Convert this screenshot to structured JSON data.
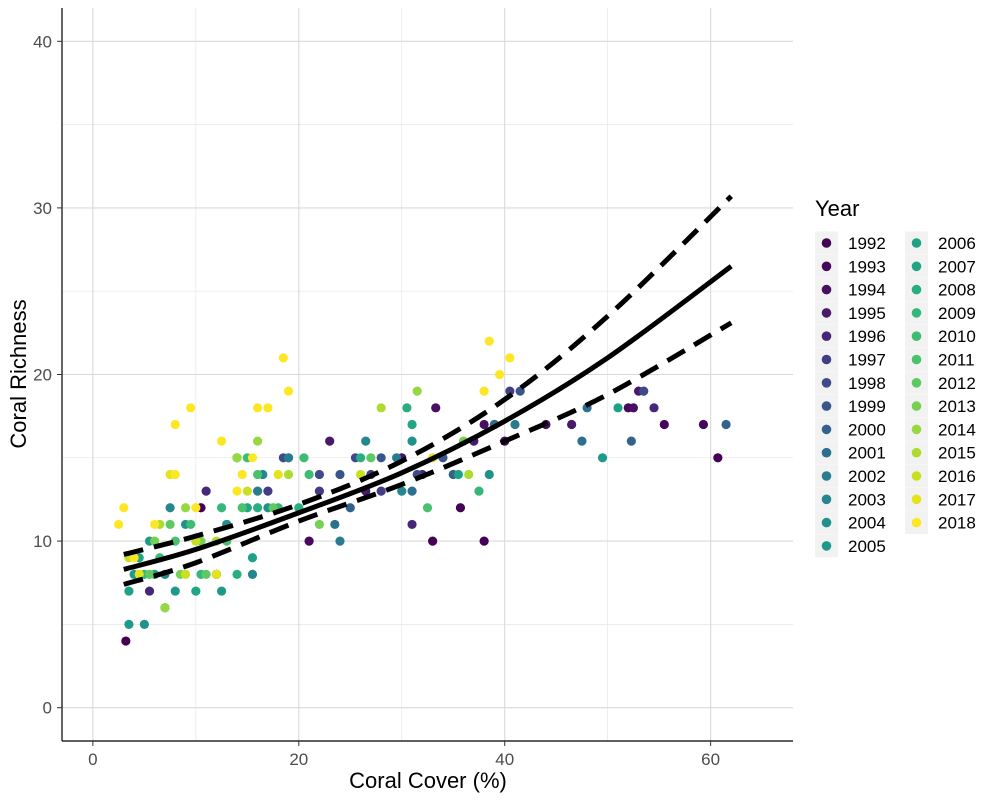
{
  "chart_data": {
    "type": "scatter",
    "xlabel": "Coral Cover (%)",
    "ylabel": "Coral Richness",
    "xlim": [
      -3,
      68
    ],
    "ylim": [
      -2,
      42
    ],
    "x_ticks": [
      0,
      20,
      40,
      60
    ],
    "y_ticks": [
      0,
      10,
      20,
      30,
      40
    ],
    "grid": true,
    "legend": {
      "title": "Year",
      "placement": "right",
      "columns": 2,
      "entries": [
        {
          "label": "1992",
          "color": "#440154"
        },
        {
          "label": "1993",
          "color": "#46085c"
        },
        {
          "label": "1994",
          "color": "#471063"
        },
        {
          "label": "1995",
          "color": "#481a6c"
        },
        {
          "label": "1996",
          "color": "#472878"
        },
        {
          "label": "1997",
          "color": "#433d84"
        },
        {
          "label": "1998",
          "color": "#3e4a89"
        },
        {
          "label": "1999",
          "color": "#39568c"
        },
        {
          "label": "2000",
          "color": "#33638d"
        },
        {
          "label": "2001",
          "color": "#2d6f8e"
        },
        {
          "label": "2002",
          "color": "#287c8e"
        },
        {
          "label": "2003",
          "color": "#24868e"
        },
        {
          "label": "2004",
          "color": "#21918c"
        },
        {
          "label": "2005",
          "color": "#1f9a8a"
        },
        {
          "label": "2006",
          "color": "#1fa187"
        },
        {
          "label": "2007",
          "color": "#21a585"
        },
        {
          "label": "2008",
          "color": "#28ae80"
        },
        {
          "label": "2009",
          "color": "#35b779"
        },
        {
          "label": "2010",
          "color": "#3fbc73"
        },
        {
          "label": "2011",
          "color": "#4ac16d"
        },
        {
          "label": "2012",
          "color": "#5ec962"
        },
        {
          "label": "2013",
          "color": "#75d054"
        },
        {
          "label": "2014",
          "color": "#95d840"
        },
        {
          "label": "2015",
          "color": "#addc30"
        },
        {
          "label": "2016",
          "color": "#c8e020"
        },
        {
          "label": "2017",
          "color": "#e5e419"
        },
        {
          "label": "2018",
          "color": "#fde725"
        }
      ]
    },
    "fit": {
      "x": [
        3,
        10,
        20,
        30,
        40,
        50,
        62
      ],
      "y": [
        8.3,
        9.5,
        11.7,
        14.1,
        17.2,
        21.0,
        26.5
      ]
    },
    "ci_upper": {
      "x": [
        3,
        10,
        20,
        30,
        40,
        50,
        62
      ],
      "y": [
        9.2,
        10.3,
        12.2,
        14.8,
        18.5,
        23.5,
        30.7
      ]
    },
    "ci_lower": {
      "x": [
        3,
        10,
        20,
        30,
        40,
        50,
        62
      ],
      "y": [
        7.4,
        8.7,
        11.2,
        13.4,
        16.0,
        18.8,
        23.1
      ]
    },
    "points": [
      {
        "x": 3.2,
        "y": 4,
        "year": "1992"
      },
      {
        "x": 33,
        "y": 10,
        "year": "1992"
      },
      {
        "x": 38,
        "y": 10,
        "year": "1992"
      },
      {
        "x": 60.7,
        "y": 15,
        "year": "1992"
      },
      {
        "x": 35.7,
        "y": 12,
        "year": "1992"
      },
      {
        "x": 10.5,
        "y": 12,
        "year": "1992"
      },
      {
        "x": 12,
        "y": 8,
        "year": "1992"
      },
      {
        "x": 21,
        "y": 10,
        "year": "1993"
      },
      {
        "x": 40,
        "y": 16,
        "year": "1993"
      },
      {
        "x": 59.3,
        "y": 17,
        "year": "1993"
      },
      {
        "x": 55.5,
        "y": 17,
        "year": "1993"
      },
      {
        "x": 52,
        "y": 18,
        "year": "1993"
      },
      {
        "x": 38,
        "y": 17,
        "year": "1994"
      },
      {
        "x": 44,
        "y": 17,
        "year": "1994"
      },
      {
        "x": 52.5,
        "y": 18,
        "year": "1994"
      },
      {
        "x": 33.3,
        "y": 18,
        "year": "1994"
      },
      {
        "x": 30,
        "y": 15,
        "year": "1994"
      },
      {
        "x": 46.5,
        "y": 17,
        "year": "1995"
      },
      {
        "x": 26.5,
        "y": 13,
        "year": "1995"
      },
      {
        "x": 37,
        "y": 16,
        "year": "1995"
      },
      {
        "x": 53,
        "y": 19,
        "year": "1995"
      },
      {
        "x": 23,
        "y": 16,
        "year": "1995"
      },
      {
        "x": 31,
        "y": 11,
        "year": "1996"
      },
      {
        "x": 54.5,
        "y": 18,
        "year": "1996"
      },
      {
        "x": 39,
        "y": 17,
        "year": "1996"
      },
      {
        "x": 32,
        "y": 14,
        "year": "1996"
      },
      {
        "x": 11,
        "y": 13,
        "year": "1996"
      },
      {
        "x": 5.5,
        "y": 7,
        "year": "1996"
      },
      {
        "x": 22,
        "y": 13,
        "year": "1997"
      },
      {
        "x": 17,
        "y": 13,
        "year": "1997"
      },
      {
        "x": 27,
        "y": 14,
        "year": "1997"
      },
      {
        "x": 28,
        "y": 13,
        "year": "1997"
      },
      {
        "x": 40.5,
        "y": 19,
        "year": "1997"
      },
      {
        "x": 25.5,
        "y": 15,
        "year": "1998"
      },
      {
        "x": 31.5,
        "y": 14,
        "year": "1998"
      },
      {
        "x": 18.5,
        "y": 15,
        "year": "1998"
      },
      {
        "x": 22,
        "y": 14,
        "year": "1998"
      },
      {
        "x": 53.5,
        "y": 19,
        "year": "1998"
      },
      {
        "x": 19,
        "y": 15,
        "year": "1999"
      },
      {
        "x": 24,
        "y": 14,
        "year": "1999"
      },
      {
        "x": 41.5,
        "y": 19,
        "year": "1999"
      },
      {
        "x": 28,
        "y": 15,
        "year": "1999"
      },
      {
        "x": 34,
        "y": 15,
        "year": "1999"
      },
      {
        "x": 25,
        "y": 12,
        "year": "2000"
      },
      {
        "x": 61.5,
        "y": 17,
        "year": "2000"
      },
      {
        "x": 35,
        "y": 14,
        "year": "2000"
      },
      {
        "x": 52.3,
        "y": 16,
        "year": "2000"
      },
      {
        "x": 13,
        "y": 11,
        "year": "2000"
      },
      {
        "x": 23.5,
        "y": 11,
        "year": "2001"
      },
      {
        "x": 39,
        "y": 17,
        "year": "2001"
      },
      {
        "x": 47.5,
        "y": 16,
        "year": "2001"
      },
      {
        "x": 48,
        "y": 18,
        "year": "2001"
      },
      {
        "x": 31,
        "y": 13,
        "year": "2001"
      },
      {
        "x": 24,
        "y": 10,
        "year": "2002"
      },
      {
        "x": 29.5,
        "y": 15,
        "year": "2002"
      },
      {
        "x": 16,
        "y": 13,
        "year": "2002"
      },
      {
        "x": 41,
        "y": 17,
        "year": "2002"
      },
      {
        "x": 19,
        "y": 15,
        "year": "2002"
      },
      {
        "x": 16.5,
        "y": 14,
        "year": "2003"
      },
      {
        "x": 26.5,
        "y": 16,
        "year": "2003"
      },
      {
        "x": 30,
        "y": 13,
        "year": "2003"
      },
      {
        "x": 15.5,
        "y": 8,
        "year": "2003"
      },
      {
        "x": 7.5,
        "y": 12,
        "year": "2003"
      },
      {
        "x": 7,
        "y": 8,
        "year": "2003"
      },
      {
        "x": 13,
        "y": 11,
        "year": "2004"
      },
      {
        "x": 5,
        "y": 5,
        "year": "2004"
      },
      {
        "x": 38.5,
        "y": 14,
        "year": "2004"
      },
      {
        "x": 31,
        "y": 16,
        "year": "2004"
      },
      {
        "x": 9,
        "y": 11,
        "year": "2004"
      },
      {
        "x": 17,
        "y": 12,
        "year": "2004"
      },
      {
        "x": 3.5,
        "y": 5,
        "year": "2005"
      },
      {
        "x": 49.5,
        "y": 15,
        "year": "2005"
      },
      {
        "x": 5.5,
        "y": 10,
        "year": "2005"
      },
      {
        "x": 12.5,
        "y": 7,
        "year": "2005"
      },
      {
        "x": 8,
        "y": 7,
        "year": "2005"
      },
      {
        "x": 4,
        "y": 8,
        "year": "2005"
      },
      {
        "x": 3.5,
        "y": 7,
        "year": "2006"
      },
      {
        "x": 35.5,
        "y": 14,
        "year": "2006"
      },
      {
        "x": 15.5,
        "y": 9,
        "year": "2006"
      },
      {
        "x": 14,
        "y": 15,
        "year": "2006"
      },
      {
        "x": 51,
        "y": 18,
        "year": "2006"
      },
      {
        "x": 6,
        "y": 8,
        "year": "2006"
      },
      {
        "x": 7,
        "y": 6,
        "year": "2007"
      },
      {
        "x": 10,
        "y": 7,
        "year": "2007"
      },
      {
        "x": 15,
        "y": 12,
        "year": "2007"
      },
      {
        "x": 31,
        "y": 17,
        "year": "2007"
      },
      {
        "x": 4.5,
        "y": 9,
        "year": "2007"
      },
      {
        "x": 14,
        "y": 8,
        "year": "2008"
      },
      {
        "x": 26,
        "y": 15,
        "year": "2008"
      },
      {
        "x": 30.5,
        "y": 18,
        "year": "2008"
      },
      {
        "x": 16,
        "y": 12,
        "year": "2008"
      },
      {
        "x": 20,
        "y": 12,
        "year": "2008"
      },
      {
        "x": 10.5,
        "y": 8,
        "year": "2009"
      },
      {
        "x": 37.5,
        "y": 13,
        "year": "2009"
      },
      {
        "x": 12.5,
        "y": 12,
        "year": "2009"
      },
      {
        "x": 18,
        "y": 12,
        "year": "2009"
      },
      {
        "x": 5,
        "y": 8,
        "year": "2009"
      },
      {
        "x": 20.5,
        "y": 15,
        "year": "2010"
      },
      {
        "x": 21,
        "y": 14,
        "year": "2010"
      },
      {
        "x": 15,
        "y": 15,
        "year": "2010"
      },
      {
        "x": 9.5,
        "y": 11,
        "year": "2010"
      },
      {
        "x": 6.5,
        "y": 9,
        "year": "2010"
      },
      {
        "x": 16,
        "y": 14,
        "year": "2011"
      },
      {
        "x": 32.5,
        "y": 12,
        "year": "2011"
      },
      {
        "x": 8,
        "y": 10,
        "year": "2011"
      },
      {
        "x": 13,
        "y": 10,
        "year": "2011"
      },
      {
        "x": 14.5,
        "y": 12,
        "year": "2011"
      },
      {
        "x": 17.5,
        "y": 12,
        "year": "2012"
      },
      {
        "x": 27,
        "y": 15,
        "year": "2012"
      },
      {
        "x": 7.5,
        "y": 11,
        "year": "2012"
      },
      {
        "x": 11,
        "y": 8,
        "year": "2012"
      },
      {
        "x": 5.5,
        "y": 8,
        "year": "2012"
      },
      {
        "x": 6,
        "y": 10,
        "year": "2013"
      },
      {
        "x": 10.5,
        "y": 10,
        "year": "2013"
      },
      {
        "x": 36,
        "y": 16,
        "year": "2013"
      },
      {
        "x": 22,
        "y": 11,
        "year": "2013"
      },
      {
        "x": 8.5,
        "y": 8,
        "year": "2013"
      },
      {
        "x": 31.5,
        "y": 19,
        "year": "2014"
      },
      {
        "x": 14,
        "y": 15,
        "year": "2014"
      },
      {
        "x": 9,
        "y": 12,
        "year": "2014"
      },
      {
        "x": 7,
        "y": 6,
        "year": "2014"
      },
      {
        "x": 16,
        "y": 16,
        "year": "2014"
      },
      {
        "x": 28,
        "y": 18,
        "year": "2015"
      },
      {
        "x": 19,
        "y": 14,
        "year": "2015"
      },
      {
        "x": 6.5,
        "y": 11,
        "year": "2015"
      },
      {
        "x": 12,
        "y": 10,
        "year": "2015"
      },
      {
        "x": 36.5,
        "y": 14,
        "year": "2015"
      },
      {
        "x": 3.5,
        "y": 9,
        "year": "2016"
      },
      {
        "x": 15,
        "y": 13,
        "year": "2016"
      },
      {
        "x": 9,
        "y": 8,
        "year": "2016"
      },
      {
        "x": 10,
        "y": 10,
        "year": "2016"
      },
      {
        "x": 26,
        "y": 14,
        "year": "2016"
      },
      {
        "x": 18,
        "y": 14,
        "year": "2017"
      },
      {
        "x": 7.5,
        "y": 14,
        "year": "2017"
      },
      {
        "x": 12,
        "y": 8,
        "year": "2017"
      },
      {
        "x": 4.5,
        "y": 8,
        "year": "2017"
      },
      {
        "x": 33,
        "y": 15,
        "year": "2017"
      },
      {
        "x": 3,
        "y": 12,
        "year": "2018"
      },
      {
        "x": 2.5,
        "y": 11,
        "year": "2018"
      },
      {
        "x": 8,
        "y": 17,
        "year": "2018"
      },
      {
        "x": 9.5,
        "y": 18,
        "year": "2018"
      },
      {
        "x": 18.5,
        "y": 21,
        "year": "2018"
      },
      {
        "x": 19,
        "y": 19,
        "year": "2018"
      },
      {
        "x": 16,
        "y": 18,
        "year": "2018"
      },
      {
        "x": 17,
        "y": 18,
        "year": "2018"
      },
      {
        "x": 38.5,
        "y": 22,
        "year": "2018"
      },
      {
        "x": 40.5,
        "y": 21,
        "year": "2018"
      },
      {
        "x": 39.5,
        "y": 20,
        "year": "2018"
      },
      {
        "x": 38,
        "y": 19,
        "year": "2018"
      },
      {
        "x": 12.5,
        "y": 16,
        "year": "2018"
      },
      {
        "x": 8,
        "y": 14,
        "year": "2018"
      },
      {
        "x": 14.5,
        "y": 14,
        "year": "2018"
      },
      {
        "x": 15.5,
        "y": 15,
        "year": "2018"
      },
      {
        "x": 14,
        "y": 13,
        "year": "2018"
      },
      {
        "x": 10,
        "y": 12,
        "year": "2018"
      },
      {
        "x": 6,
        "y": 11,
        "year": "2018"
      },
      {
        "x": 4,
        "y": 9,
        "year": "2018"
      }
    ]
  }
}
